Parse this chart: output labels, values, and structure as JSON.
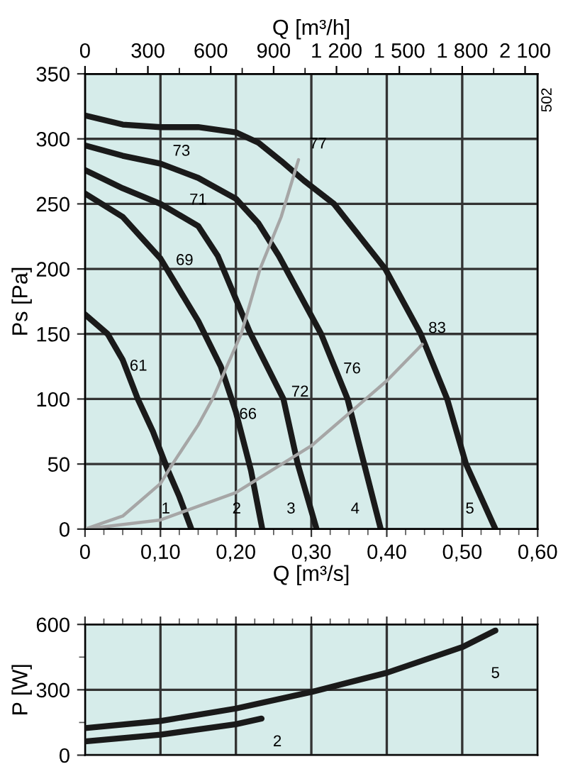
{
  "chart_data": [
    {
      "type": "line",
      "xlabel": "Q [m³/s]",
      "ylabel": "Ps [Pa]",
      "x2label": "Q [m³/h]",
      "xlim": [
        0,
        0.6
      ],
      "xticks": [
        {
          "value": 0,
          "label": "0"
        },
        {
          "value": 0.1,
          "label": "0,10"
        },
        {
          "value": 0.2,
          "label": "0,20"
        },
        {
          "value": 0.3,
          "label": "0,30"
        },
        {
          "value": 0.4,
          "label": "0,40"
        },
        {
          "value": 0.5,
          "label": "0,50"
        },
        {
          "value": 0.6,
          "label": "0,60"
        }
      ],
      "x2lim": [
        0,
        2160
      ],
      "x2ticks": [
        0,
        300,
        600,
        900,
        {
          "value": 1200,
          "label": "1 200"
        },
        {
          "value": 1500,
          "label": "1 500"
        },
        {
          "value": 1800,
          "label": "1 800"
        },
        {
          "value": 2100,
          "label": "2 100"
        }
      ],
      "ylim": [
        0,
        350
      ],
      "yticks": [
        0,
        50,
        100,
        150,
        200,
        250,
        300,
        350
      ],
      "grid": true,
      "line_style": "solid",
      "series": [
        {
          "name": "1",
          "color": "#1a1a1a",
          "x": [
            0,
            0.03,
            0.05,
            0.07,
            0.09,
            0.11,
            0.125,
            0.141
          ],
          "values": [
            165,
            150,
            130,
            100,
            75,
            45,
            25,
            0
          ]
        },
        {
          "name": "2",
          "color": "#1a1a1a",
          "x": [
            0,
            0.05,
            0.1,
            0.15,
            0.18,
            0.2,
            0.22,
            0.235
          ],
          "values": [
            258,
            240,
            208,
            160,
            125,
            90,
            45,
            0
          ]
        },
        {
          "name": "3",
          "color": "#1a1a1a",
          "x": [
            0,
            0.05,
            0.1,
            0.15,
            0.176,
            0.218,
            0.263,
            0.282,
            0.307
          ],
          "values": [
            276,
            262,
            250,
            233,
            210,
            152,
            100,
            50,
            0
          ]
        },
        {
          "name": "4",
          "color": "#1a1a1a",
          "x": [
            0,
            0.05,
            0.1,
            0.15,
            0.2,
            0.23,
            0.257,
            0.313,
            0.348,
            0.37,
            0.392
          ],
          "values": [
            295,
            287,
            281,
            270,
            254,
            235,
            210,
            150,
            100,
            50,
            0
          ]
        },
        {
          "name": "5",
          "color": "#1a1a1a",
          "x": [
            0,
            0.05,
            0.1,
            0.15,
            0.2,
            0.23,
            0.26,
            0.29,
            0.33,
            0.364,
            0.398,
            0.445,
            0.48,
            0.505,
            0.544
          ],
          "values": [
            318,
            311,
            309,
            309,
            305,
            297,
            283,
            268,
            250,
            225,
            200,
            150,
            100,
            50,
            0
          ]
        },
        {
          "color": "#a6a6a6",
          "x": [
            0,
            0.05,
            0.1,
            0.116,
            0.15,
            0.169,
            0.207,
            0.232,
            0.26,
            0.283
          ],
          "values": [
            0,
            10,
            35,
            50,
            80,
            100,
            150,
            200,
            240,
            284
          ]
        },
        {
          "color": "#a6a6a6",
          "x": [
            0,
            0.1,
            0.2,
            0.3,
            0.4,
            0.447
          ],
          "values": [
            0,
            7,
            28,
            64,
            114,
            142
          ]
        }
      ],
      "annotations": [
        "61",
        "66",
        "69",
        "71",
        "72",
        "73",
        "76",
        "77",
        "83",
        "502"
      ]
    },
    {
      "type": "line",
      "ylabel": "P [W]",
      "xlim": [
        0,
        0.6
      ],
      "xticks": [
        0,
        0.1,
        0.2,
        0.3,
        0.4,
        0.5,
        0.6
      ],
      "tick_labels": "y",
      "ylim": [
        0,
        600
      ],
      "yticks": [
        0,
        300,
        600
      ],
      "grid": true,
      "line_style": "solid",
      "series": [
        {
          "name": "5",
          "color": "#1a1a1a",
          "x": [
            0,
            0.1,
            0.2,
            0.3,
            0.4,
            0.5,
            0.544
          ],
          "values": [
            124,
            157,
            214,
            290,
            378,
            496,
            572
          ]
        },
        {
          "name": "2",
          "color": "#1a1a1a",
          "x": [
            0,
            0.1,
            0.2,
            0.234
          ],
          "values": [
            63,
            94,
            142,
            168
          ]
        }
      ]
    }
  ]
}
